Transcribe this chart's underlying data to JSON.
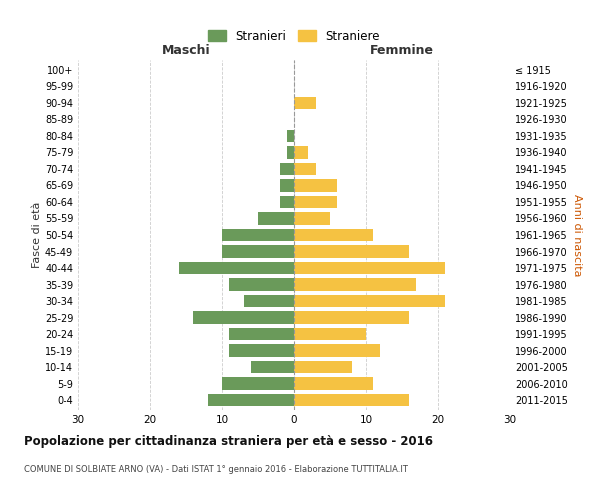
{
  "age_groups": [
    "100+",
    "95-99",
    "90-94",
    "85-89",
    "80-84",
    "75-79",
    "70-74",
    "65-69",
    "60-64",
    "55-59",
    "50-54",
    "45-49",
    "40-44",
    "35-39",
    "30-34",
    "25-29",
    "20-24",
    "15-19",
    "10-14",
    "5-9",
    "0-4"
  ],
  "birth_years": [
    "≤ 1915",
    "1916-1920",
    "1921-1925",
    "1926-1930",
    "1931-1935",
    "1936-1940",
    "1941-1945",
    "1946-1950",
    "1951-1955",
    "1956-1960",
    "1961-1965",
    "1966-1970",
    "1971-1975",
    "1976-1980",
    "1981-1985",
    "1986-1990",
    "1991-1995",
    "1996-2000",
    "2001-2005",
    "2006-2010",
    "2011-2015"
  ],
  "males": [
    0,
    0,
    0,
    0,
    1,
    1,
    2,
    2,
    2,
    5,
    10,
    10,
    16,
    9,
    7,
    14,
    9,
    9,
    6,
    10,
    12
  ],
  "females": [
    0,
    0,
    3,
    0,
    0,
    2,
    3,
    6,
    6,
    5,
    11,
    16,
    21,
    17,
    21,
    16,
    10,
    12,
    8,
    11,
    16
  ],
  "male_color": "#6a9a5a",
  "female_color": "#f5c242",
  "grid_color": "#cccccc",
  "title": "Popolazione per cittadinanza straniera per età e sesso - 2016",
  "subtitle": "COMUNE DI SOLBIATE ARNO (VA) - Dati ISTAT 1° gennaio 2016 - Elaborazione TUTTITALIA.IT",
  "xlabel_left": "Maschi",
  "xlabel_right": "Femmine",
  "ylabel_left": "Fasce di età",
  "ylabel_right": "Anni di nascita",
  "legend_male": "Stranieri",
  "legend_female": "Straniere",
  "xlim": 30
}
